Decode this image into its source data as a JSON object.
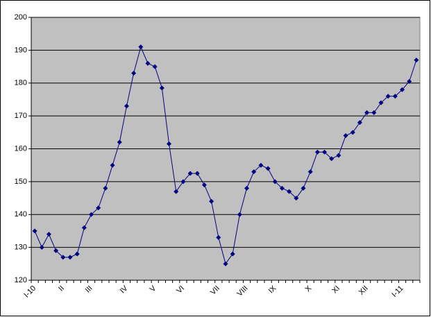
{
  "chart_data": {
    "type": "line",
    "categories": [
      "I-10",
      null,
      null,
      null,
      "II",
      null,
      null,
      null,
      "III",
      null,
      null,
      null,
      null,
      "IV",
      null,
      null,
      null,
      "V",
      null,
      null,
      null,
      "VI",
      null,
      null,
      null,
      null,
      "VII",
      null,
      null,
      null,
      "VIII",
      null,
      null,
      null,
      "IX",
      null,
      null,
      null,
      null,
      "X",
      null,
      null,
      null,
      "XI",
      null,
      null,
      null,
      "XII",
      null,
      null,
      null,
      null,
      "I-11",
      null,
      null
    ],
    "series": [
      {
        "name": null,
        "color": "#000080",
        "values": [
          135,
          130,
          134,
          129,
          127,
          127,
          128,
          136,
          140,
          142,
          148,
          155,
          162,
          173,
          183,
          191,
          186,
          185,
          178.5,
          161.5,
          147,
          150,
          152.5,
          152.5,
          149,
          144,
          133,
          125,
          128,
          140,
          148,
          153,
          155,
          154,
          150,
          148,
          147,
          145,
          148,
          153,
          159,
          159,
          157,
          158,
          164,
          165,
          168,
          171,
          171,
          174,
          176,
          176,
          178,
          180.5,
          187
        ]
      }
    ],
    "ylim": [
      120,
      200
    ],
    "yticks": [
      120,
      130,
      140,
      150,
      160,
      170,
      180,
      190,
      200
    ],
    "grid": true,
    "plot_background": "#c0c0c0"
  }
}
